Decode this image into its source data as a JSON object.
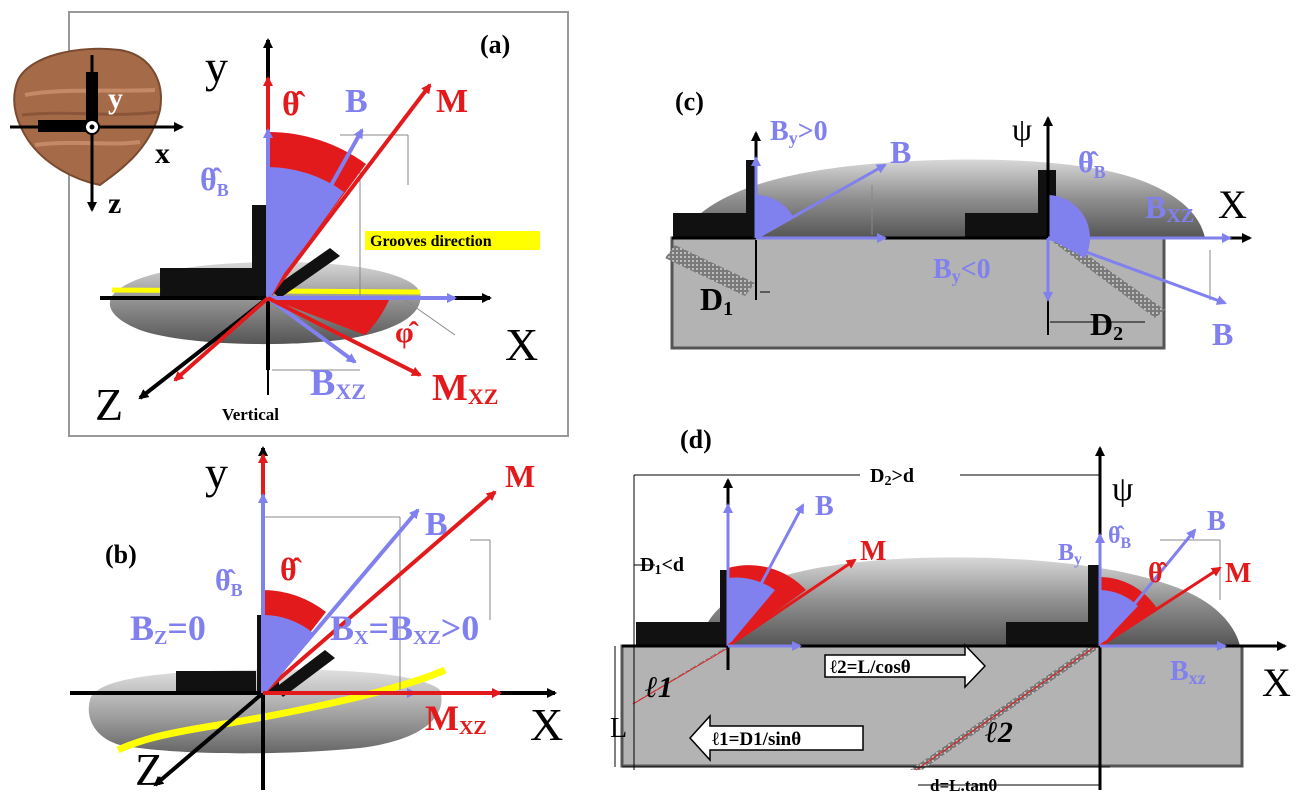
{
  "colors": {
    "red": "#e31a1c",
    "blue": "#8080ee",
    "black": "#000000",
    "groove": "#ffff00",
    "sediment": "#b3b3b3",
    "rock": "#9a9a9a"
  },
  "panel_a": {
    "label": "(a)",
    "axis_y": "y",
    "axis_x": "X",
    "axis_z": "Z",
    "theta": "θ̂",
    "B": "B",
    "M": "M",
    "theta_B": "θ̂",
    "theta_B_sub": "B",
    "grooves": "Grooves direction",
    "phi": "φ̂",
    "Bxz": "B",
    "Bxz_sub": "XZ",
    "Mxz": "M",
    "Mxz_sub": "XZ",
    "vertical": "Vertical",
    "inset_y": "y",
    "inset_x": "x",
    "inset_z": "z"
  },
  "panel_b": {
    "label": "(b)",
    "axis_y": "y",
    "axis_x": "X",
    "axis_z": "Z",
    "B": "B",
    "M": "M",
    "theta": "θ̂",
    "theta_B": "θ̂",
    "theta_B_sub": "B",
    "Bz": "B",
    "Bz_sub": "Z",
    "Bz_eq": "=0",
    "Bx": "B",
    "Bx_sub": "X",
    "Bx_eq": "=B",
    "Bx_sub2": "XZ",
    "Bx_gt": ">0",
    "Mxz": "M",
    "Mxz_sub": "XZ"
  },
  "panel_c": {
    "label": "(c)",
    "By_pos": "B",
    "By_pos_sub": "y",
    "By_pos_gt": ">0",
    "B_upper": "B",
    "psi": "ψ",
    "theta_B": "θ̂",
    "theta_B_sub": "B",
    "Bxz": "B",
    "Bxz_sub": "XZ",
    "axis_x": "X",
    "By_neg": "B",
    "By_neg_sub": "y",
    "By_neg_lt": "<0",
    "D1": "D",
    "D1_sub": "1",
    "D2": "D",
    "D2_sub": "2",
    "B_lower": "B"
  },
  "panel_d": {
    "label": "(d)",
    "D2d": "D",
    "D2d_sub": "2",
    "D2d_rest": ">d",
    "psi": "ψ",
    "B_left": "B",
    "M_left": "M",
    "D1d": "D",
    "D1d_sub": "1",
    "D1d_rest": "<d",
    "By": "B",
    "By_sub": "y",
    "theta_B": "θ̂",
    "theta_B_sub": "B",
    "theta": "θ̂",
    "B_right": "B",
    "M_right": "M",
    "Bxz": "B",
    "Bxz_sub": "xz",
    "axis_x": "X",
    "l2_eq": "ℓ2=L/cosθ",
    "l1": "ℓ1",
    "l2": "ℓ2",
    "L": "L",
    "l1_eq": "ℓ1=D1/sinθ",
    "d_eq": "d=L.tanθ"
  }
}
